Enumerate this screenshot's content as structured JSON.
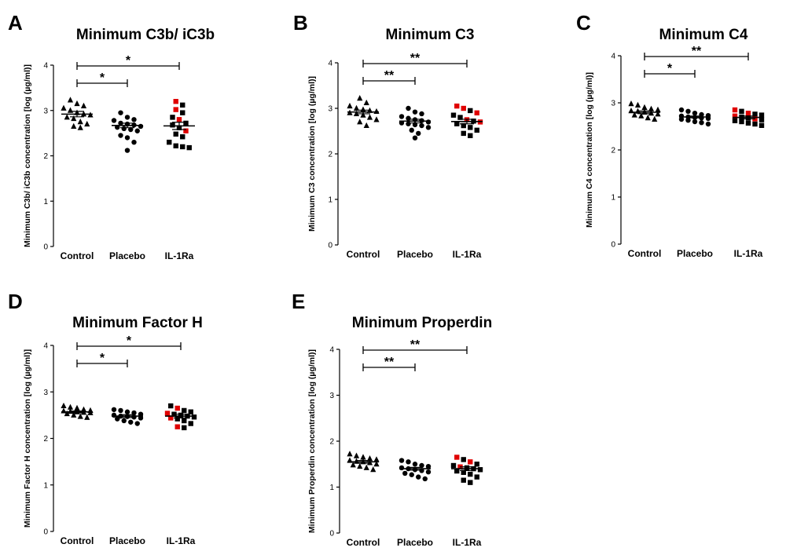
{
  "figure_colors": {
    "black": "#000000",
    "red": "#e00000"
  },
  "chart_data": [
    {
      "panel": "A",
      "type": "scatter",
      "title": "Minimum C3b/ iC3b",
      "ylabel": "Minimum C3b/ iC3b concentration [log (µg/ml)]",
      "categories": [
        "Control",
        "Placebo",
        "IL-1Ra"
      ],
      "ylim": [
        0,
        4
      ],
      "yticks": [
        "0",
        "1",
        "2",
        "3",
        "4"
      ],
      "series": [
        {
          "category": "Control",
          "marker": "triangle",
          "mean": 2.92,
          "sem": 0.06,
          "values": [
            3.23,
            3.15,
            3.1,
            3.05,
            3.0,
            2.95,
            2.92,
            2.9,
            2.85,
            2.82,
            2.75,
            2.7,
            2.65,
            2.62
          ]
        },
        {
          "category": "Placebo",
          "marker": "circle",
          "mean": 2.67,
          "sem": 0.05,
          "values": [
            2.95,
            2.85,
            2.8,
            2.78,
            2.72,
            2.7,
            2.68,
            2.65,
            2.63,
            2.6,
            2.58,
            2.55,
            2.45,
            2.4,
            2.3,
            2.12
          ]
        },
        {
          "category": "IL-1Ra",
          "marker": "square",
          "mean": 2.66,
          "sem": 0.08,
          "values": [
            3.2,
            3.12,
            3.02,
            2.95,
            2.85,
            2.8,
            2.72,
            2.68,
            2.62,
            2.55,
            2.48,
            2.42,
            2.3,
            2.22,
            2.2,
            2.18
          ],
          "red_indices": [
            0,
            2,
            5,
            9
          ]
        }
      ],
      "comparisons": [
        {
          "from": "Control",
          "to": "Placebo",
          "label": "*"
        },
        {
          "from": "Control",
          "to": "IL-1Ra",
          "label": "*"
        }
      ]
    },
    {
      "panel": "B",
      "type": "scatter",
      "title": "Minimum C3",
      "ylabel": "Minimum C3 concentration [log (µg/ml)]",
      "categories": [
        "Control",
        "Placebo",
        "IL-1Ra"
      ],
      "ylim": [
        0,
        4
      ],
      "yticks": [
        "0",
        "1",
        "2",
        "3",
        "4"
      ],
      "series": [
        {
          "category": "Control",
          "marker": "triangle",
          "mean": 2.92,
          "sem": 0.04,
          "values": [
            3.22,
            3.12,
            3.05,
            3.0,
            2.97,
            2.95,
            2.93,
            2.9,
            2.88,
            2.85,
            2.8,
            2.75,
            2.7,
            2.62
          ]
        },
        {
          "category": "Placebo",
          "marker": "circle",
          "mean": 2.72,
          "sem": 0.04,
          "values": [
            3.0,
            2.92,
            2.88,
            2.82,
            2.78,
            2.75,
            2.73,
            2.7,
            2.68,
            2.66,
            2.64,
            2.62,
            2.58,
            2.52,
            2.45,
            2.35
          ]
        },
        {
          "category": "IL-1Ra",
          "marker": "square",
          "mean": 2.71,
          "sem": 0.05,
          "values": [
            3.05,
            3.0,
            2.95,
            2.9,
            2.85,
            2.8,
            2.75,
            2.72,
            2.7,
            2.66,
            2.62,
            2.58,
            2.52,
            2.45,
            2.4
          ],
          "red_indices": [
            0,
            1,
            3,
            6,
            8
          ]
        }
      ],
      "comparisons": [
        {
          "from": "Control",
          "to": "Placebo",
          "label": "**"
        },
        {
          "from": "Control",
          "to": "IL-1Ra",
          "label": "**"
        }
      ]
    },
    {
      "panel": "C",
      "type": "scatter",
      "title": "Minimum C4",
      "ylabel": "Minimum C4 concentration [log (µg/ml)]",
      "categories": [
        "Control",
        "Placebo",
        "IL-1Ra"
      ],
      "ylim": [
        0,
        4
      ],
      "yticks": [
        "0",
        "1",
        "2",
        "3",
        "4"
      ],
      "series": [
        {
          "category": "Control",
          "marker": "triangle",
          "mean": 2.8,
          "sem": 0.03,
          "values": [
            2.98,
            2.95,
            2.9,
            2.87,
            2.85,
            2.83,
            2.82,
            2.8,
            2.78,
            2.76,
            2.74,
            2.72,
            2.68,
            2.65
          ]
        },
        {
          "category": "Placebo",
          "marker": "circle",
          "mean": 2.7,
          "sem": 0.02,
          "values": [
            2.85,
            2.82,
            2.78,
            2.75,
            2.73,
            2.72,
            2.7,
            2.69,
            2.68,
            2.67,
            2.65,
            2.63,
            2.6,
            2.58,
            2.55
          ]
        },
        {
          "category": "IL-1Ra",
          "marker": "square",
          "mean": 2.69,
          "sem": 0.03,
          "values": [
            2.85,
            2.82,
            2.78,
            2.76,
            2.74,
            2.72,
            2.7,
            2.68,
            2.66,
            2.64,
            2.62,
            2.6,
            2.57,
            2.55,
            2.52
          ],
          "red_indices": [
            0,
            2,
            5,
            8
          ]
        }
      ],
      "comparisons": [
        {
          "from": "Control",
          "to": "Placebo",
          "label": "*"
        },
        {
          "from": "Control",
          "to": "IL-1Ra",
          "label": "**"
        }
      ]
    },
    {
      "panel": "D",
      "type": "scatter",
      "title": "Minimum Factor H",
      "ylabel": "Minimum Factor H concentration [log (µg/ml)]",
      "categories": [
        "Control",
        "Placebo",
        "IL-1Ra"
      ],
      "ylim": [
        0,
        4
      ],
      "yticks": [
        "0",
        "1",
        "2",
        "3",
        "4"
      ],
      "series": [
        {
          "category": "Control",
          "marker": "triangle",
          "mean": 2.57,
          "sem": 0.02,
          "values": [
            2.7,
            2.67,
            2.65,
            2.62,
            2.6,
            2.59,
            2.58,
            2.57,
            2.56,
            2.55,
            2.53,
            2.5,
            2.47,
            2.45
          ]
        },
        {
          "category": "Placebo",
          "marker": "circle",
          "mean": 2.48,
          "sem": 0.03,
          "values": [
            2.62,
            2.6,
            2.57,
            2.55,
            2.52,
            2.5,
            2.48,
            2.47,
            2.46,
            2.44,
            2.42,
            2.38,
            2.35,
            2.32
          ]
        },
        {
          "category": "IL-1Ra",
          "marker": "square",
          "mean": 2.48,
          "sem": 0.04,
          "values": [
            2.7,
            2.65,
            2.6,
            2.57,
            2.54,
            2.52,
            2.5,
            2.48,
            2.46,
            2.44,
            2.42,
            2.38,
            2.32,
            2.25,
            2.23
          ],
          "red_indices": [
            1,
            4,
            9,
            13
          ]
        }
      ],
      "comparisons": [
        {
          "from": "Control",
          "to": "Placebo",
          "label": "*"
        },
        {
          "from": "Control",
          "to": "IL-1Ra",
          "label": "*"
        }
      ]
    },
    {
      "panel": "E",
      "type": "scatter",
      "title": "Minimum Properdin",
      "ylabel": "Minimum Properdin concentration [log (µg/ml)]",
      "categories": [
        "Control",
        "Placebo",
        "IL-1Ra"
      ],
      "ylim": [
        0,
        4
      ],
      "yticks": [
        "0",
        "1",
        "2",
        "3",
        "4"
      ],
      "series": [
        {
          "category": "Control",
          "marker": "triangle",
          "mean": 1.55,
          "sem": 0.03,
          "values": [
            1.72,
            1.68,
            1.65,
            1.62,
            1.6,
            1.58,
            1.56,
            1.55,
            1.53,
            1.5,
            1.48,
            1.45,
            1.42,
            1.38
          ]
        },
        {
          "category": "Placebo",
          "marker": "circle",
          "mean": 1.4,
          "sem": 0.03,
          "values": [
            1.58,
            1.55,
            1.5,
            1.47,
            1.45,
            1.42,
            1.4,
            1.38,
            1.36,
            1.33,
            1.3,
            1.27,
            1.22,
            1.18
          ]
        },
        {
          "category": "IL-1Ra",
          "marker": "square",
          "mean": 1.4,
          "sem": 0.04,
          "values": [
            1.65,
            1.6,
            1.55,
            1.5,
            1.47,
            1.44,
            1.42,
            1.4,
            1.38,
            1.35,
            1.32,
            1.28,
            1.22,
            1.15,
            1.1
          ],
          "red_indices": [
            0,
            2,
            5
          ]
        }
      ],
      "comparisons": [
        {
          "from": "Control",
          "to": "Placebo",
          "label": "**"
        },
        {
          "from": "Control",
          "to": "IL-1Ra",
          "label": "**"
        }
      ]
    }
  ]
}
